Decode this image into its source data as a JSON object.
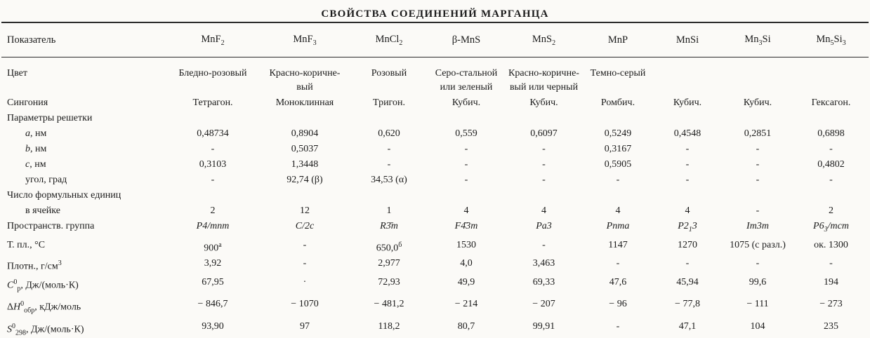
{
  "title": "СВОЙСТВА СОЕДИНЕНИЙ МАРГАНЦА",
  "table": {
    "header": [
      "Показатель",
      "MnF<sub>2</sub>",
      "MnF<sub>3</sub>",
      "MnCl<sub>2</sub>",
      "β-MnS",
      "MnS<sub>2</sub>",
      "MnP",
      "MnSi",
      "Mn<sub>3</sub>Si",
      "Mn<sub>5</sub>Si<sub>3</sub>"
    ],
    "rows": [
      {
        "label": "Цвет",
        "values": [
          "Бледно-розовый",
          "Красно-коричне-\nвый",
          "Розовый",
          "Серо-стальной\nили зеленый",
          "Красно-коричне-\nвый или черный",
          "Темно-серый",
          "",
          "",
          ""
        ]
      },
      {
        "label": "Сингония",
        "values": [
          "Тетрагон.",
          "Моноклинная",
          "Тригон.",
          "Кубич.",
          "Кубич.",
          "Ромбич.",
          "Кубич.",
          "Кубич.",
          "Гексагон."
        ]
      },
      {
        "label": "Параметры решетки",
        "values": [
          "",
          "",
          "",
          "",
          "",
          "",
          "",
          "",
          ""
        ]
      },
      {
        "label": "<i>a</i>, нм",
        "indent": true,
        "values": [
          "0,48734",
          "0,8904",
          "0,620",
          "0,559",
          "0,6097",
          "0,5249",
          "0,4548",
          "0,2851",
          "0,6898"
        ]
      },
      {
        "label": "<i>b</i>, нм",
        "indent": true,
        "values": [
          "-",
          "0,5037",
          "-",
          "-",
          "-",
          "0,3167",
          "-",
          "-",
          "-"
        ]
      },
      {
        "label": "<i>c</i>, нм",
        "indent": true,
        "values": [
          "0,3103",
          "1,3448",
          "-",
          "-",
          "-",
          "0,5905",
          "-",
          "-",
          "0,4802"
        ]
      },
      {
        "label": "угол, град",
        "indent": true,
        "values": [
          "-",
          "92,74 (β)",
          "34,53 (α)",
          "-",
          "-",
          "-",
          "-",
          "-",
          "-"
        ]
      },
      {
        "label": "Число формульных единиц",
        "values": [
          "",
          "",
          "",
          "",
          "",
          "",
          "",
          "",
          ""
        ]
      },
      {
        "label": "в ячейке",
        "indent": true,
        "values": [
          "2",
          "12",
          "1",
          "4",
          "4",
          "4",
          "4",
          "-",
          "2"
        ]
      },
      {
        "label": "Пространств. группа",
        "italic": true,
        "values": [
          "P4/mnm",
          "C/2c",
          "R3̄m",
          "F4̄3m",
          "Pa3",
          "Pnma",
          "P2<sub>1</sub>3",
          "Im3m",
          "P6<sub>3</sub>/mcm"
        ]
      },
      {
        "label": "Т. пл., °С",
        "values": [
          "900<sup>а</sup>",
          "-",
          "650,0<sup>б</sup>",
          "1530",
          "-",
          "1147",
          "1270",
          "1075 (с разл.)",
          "ок. 1300"
        ]
      },
      {
        "label": "Плотн., г/см<sup>3</sup>",
        "values": [
          "3,92",
          "-",
          "2,977",
          "4,0",
          "3,463",
          "-",
          "-",
          "-",
          "-"
        ]
      },
      {
        "label": "<i>C</i><sup>0</sup><sub>p</sub>, Дж/(моль·К)",
        "values": [
          "67,95",
          "·",
          "72,93",
          "49,9",
          "69,33",
          "47,6",
          "45,94",
          "99,6",
          "194"
        ]
      },
      {
        "label": "Δ<i>H</i><sup>0</sup><sub>обр</sub>, кДж/моль",
        "values": [
          "− 846,7",
          "− 1070",
          "− 481,2",
          "− 214",
          "− 207",
          "− 96",
          "− 77,8",
          "− 111",
          "− 273"
        ]
      },
      {
        "label": "<i>S</i><sup>0</sup><sub>298</sub>, Дж/(моль·К)",
        "values": [
          "93,90",
          "97",
          "118,2",
          "80,7",
          "99,91",
          "-",
          "47,1",
          "104",
          "235"
        ]
      }
    ]
  }
}
